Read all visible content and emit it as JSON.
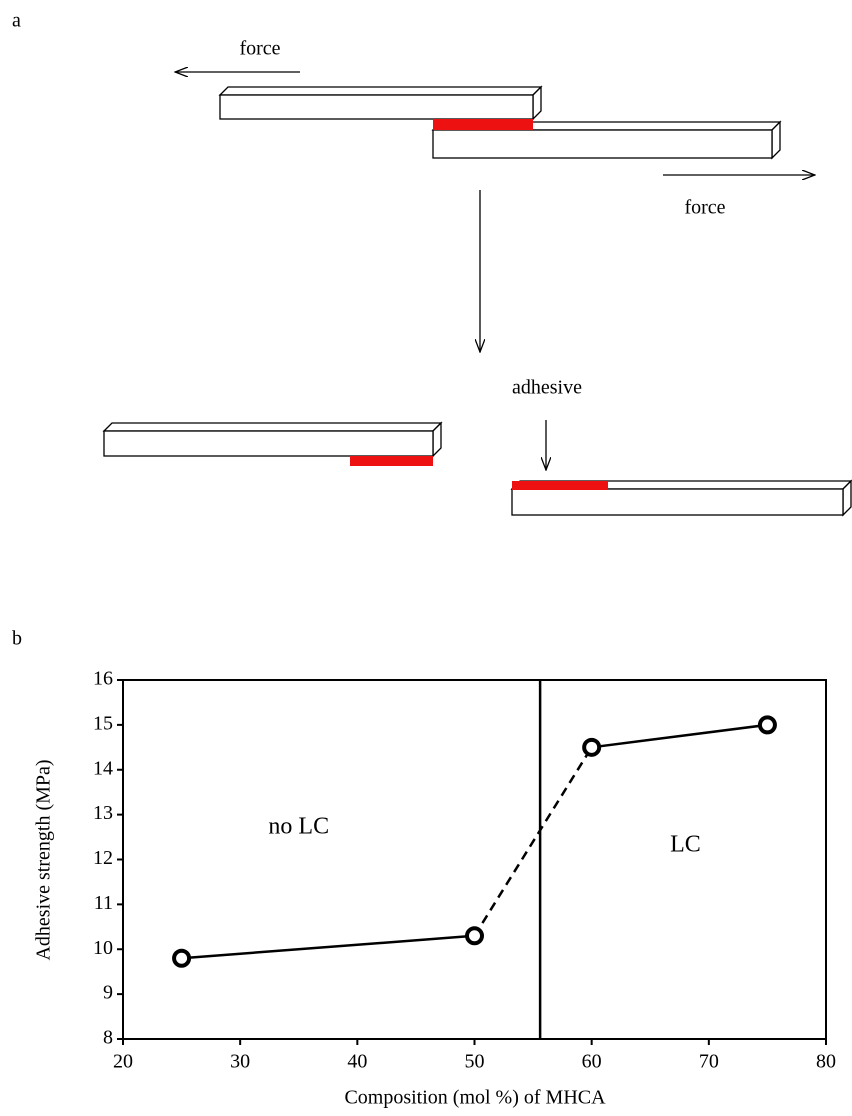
{
  "diagram": {
    "label": "a",
    "force_left": "force",
    "force_right": "force",
    "adhesive": "adhesive"
  },
  "chart_data": {
    "type": "line",
    "panel_label": "b",
    "x_label": "Composition (mol %) of MHCA",
    "y_label": "Adhesive strength (MPa)",
    "x": [
      25,
      50,
      60,
      75
    ],
    "series": [
      {
        "color": "#000000",
        "values": [
          9.8,
          10.3,
          14.5,
          15
        ],
        "segment_styles": [
          "solid",
          "dashed",
          "solid"
        ]
      }
    ],
    "xlim": [
      20,
      80
    ],
    "xticks": [
      20,
      30,
      40,
      50,
      60,
      70,
      80
    ],
    "ylim": [
      8,
      16
    ],
    "yticks": [
      8,
      9,
      10,
      11,
      12,
      13,
      14,
      15,
      16
    ],
    "phase_boundary_x": 55.6,
    "annotations": [
      {
        "text": "no LC",
        "x": 35,
        "y": 12.7
      },
      {
        "text": "LC",
        "x": 68,
        "y": 12.3
      }
    ]
  }
}
